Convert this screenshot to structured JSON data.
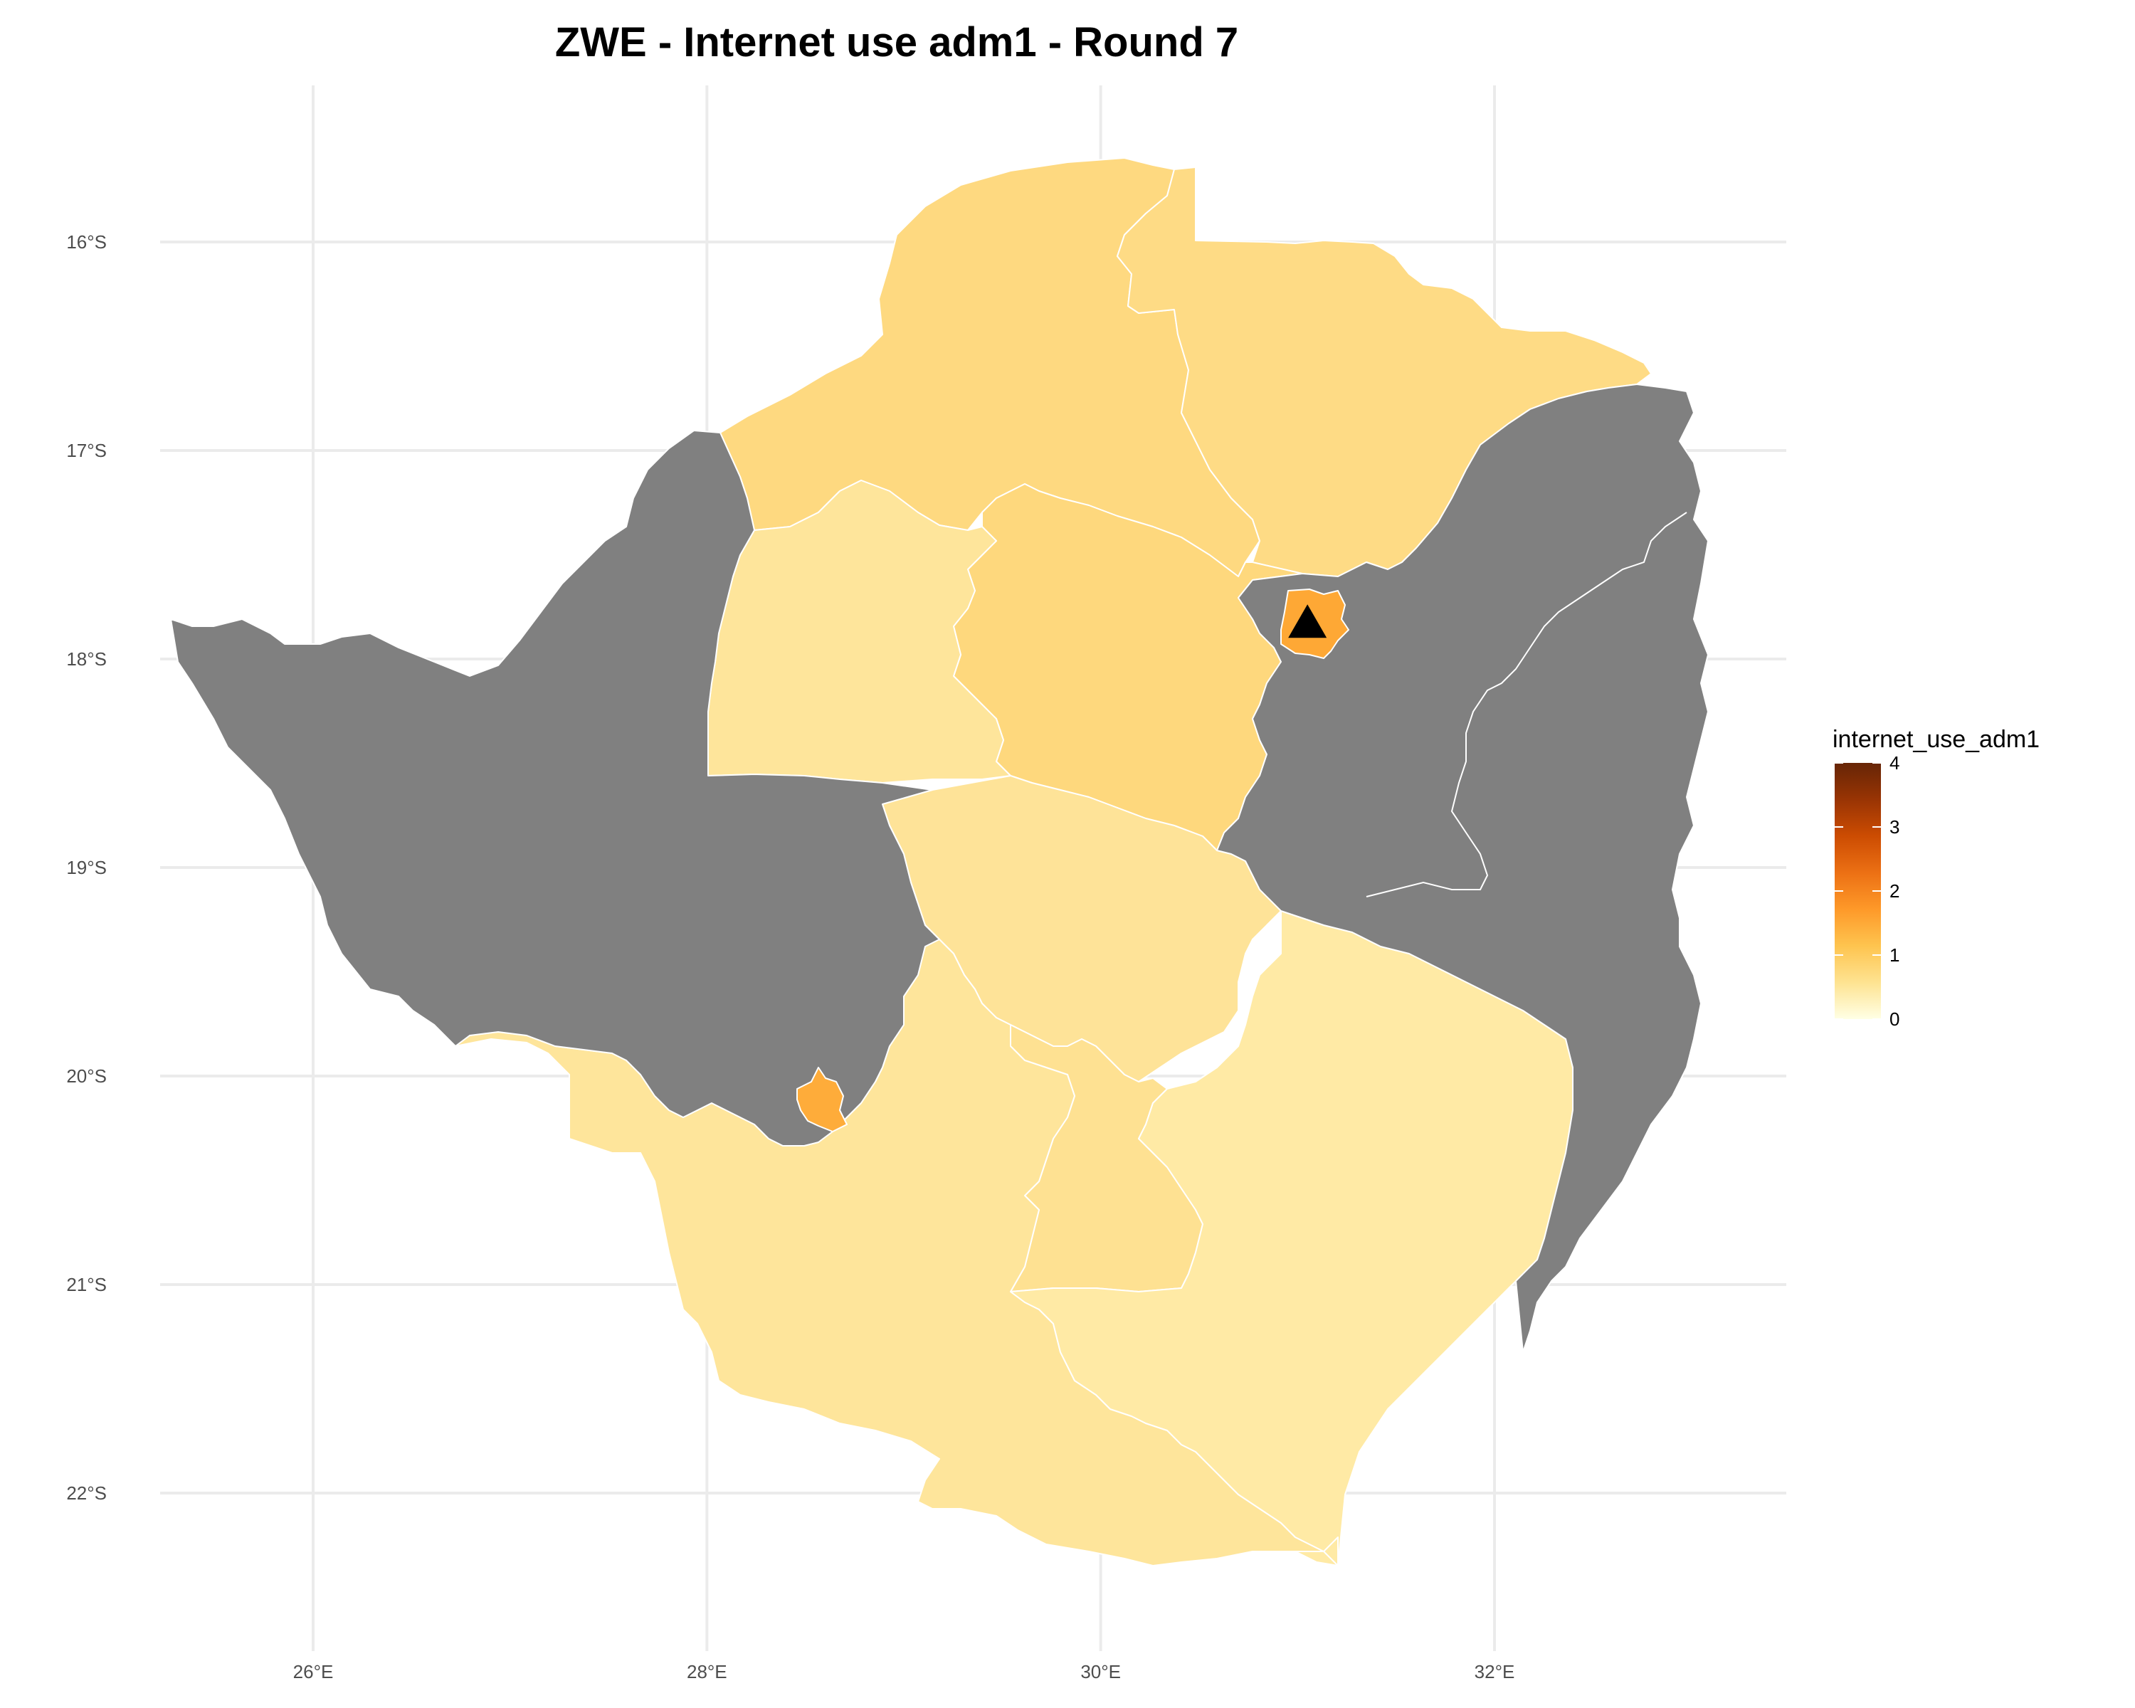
{
  "title": "ZWE - Internet use adm1 - Round 7",
  "axes": {
    "x_ticks": [
      {
        "value": 26,
        "label": "26°E"
      },
      {
        "value": 28,
        "label": "28°E"
      },
      {
        "value": 30,
        "label": "30°E"
      },
      {
        "value": 32,
        "label": "32°E"
      }
    ],
    "y_ticks": [
      {
        "value": -16,
        "label": "16°S"
      },
      {
        "value": -17,
        "label": "17°S"
      },
      {
        "value": -18,
        "label": "18°S"
      },
      {
        "value": -19,
        "label": "19°S"
      },
      {
        "value": -20,
        "label": "20°S"
      },
      {
        "value": -21,
        "label": "21°S"
      },
      {
        "value": -22,
        "label": "22°S"
      }
    ],
    "grid": true
  },
  "legend": {
    "title": "internet_use_adm1",
    "min": 0,
    "max": 4,
    "ticks": [
      "0",
      "1",
      "2",
      "3",
      "4"
    ],
    "placement": "right",
    "colors": [
      "#ffffe5",
      "#fee391",
      "#fec44f",
      "#fe9929",
      "#ec7014",
      "#cc4c02",
      "#993404",
      "#662506"
    ]
  },
  "map": {
    "na_color": "#808080",
    "border_color": "#ffffff",
    "regions_approx_values": [
      {
        "area": "north-west",
        "value": 0.9,
        "color": "#fed980"
      },
      {
        "area": "north-central",
        "value": 0.95,
        "color": "#fed87d"
      },
      {
        "area": "north-east",
        "value": 0.9,
        "color": "#fedb85"
      },
      {
        "area": "central-west",
        "value": 0.6,
        "color": "#fee59b"
      },
      {
        "area": "central",
        "value": 0.65,
        "color": "#fee398"
      },
      {
        "area": "south-central",
        "value": 0.75,
        "color": "#fee192"
      },
      {
        "area": "south-west",
        "value": 0.6,
        "color": "#fee59b"
      },
      {
        "area": "south-east",
        "value": 0.45,
        "color": "#ffeaa5"
      },
      {
        "area": "capital",
        "value": 1.7,
        "color": "#fea835"
      },
      {
        "area": "southern city",
        "value": 1.65,
        "color": "#feac3a"
      },
      {
        "area": "west",
        "value": null,
        "color": "#808080"
      },
      {
        "area": "east",
        "value": null,
        "color": "#808080"
      }
    ],
    "marker": {
      "shape": "triangle",
      "lon": 31.05,
      "lat": -17.83,
      "color": "#000000"
    }
  }
}
